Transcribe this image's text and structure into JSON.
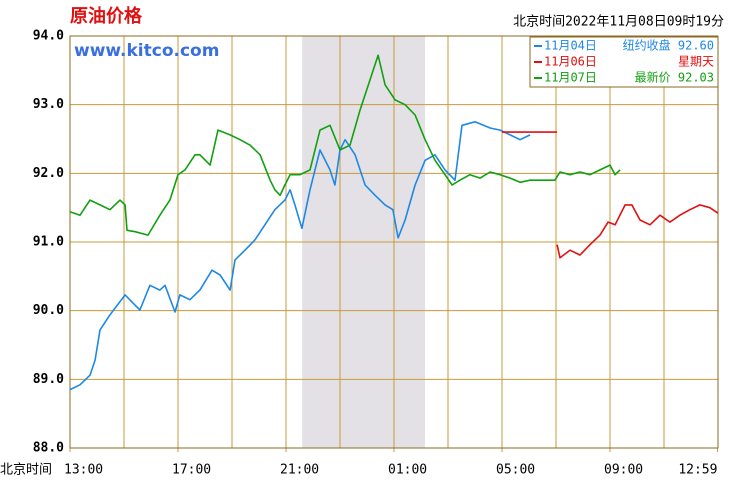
{
  "header": {
    "title": "原油价格",
    "site": "www.kitco.com",
    "timestamp": "北京时间2022年11月08日09时19分"
  },
  "chart_data": {
    "type": "line",
    "xlabel": "北京时间",
    "xlim": [
      0,
      24
    ],
    "ylim": [
      88,
      94
    ],
    "xticks": [
      {
        "value": 0,
        "label": "13:00"
      },
      {
        "value": 4,
        "label": "17:00"
      },
      {
        "value": 8,
        "label": "21:00"
      },
      {
        "value": 12,
        "label": "01:00"
      },
      {
        "value": 16,
        "label": "05:00"
      },
      {
        "value": 20,
        "label": "09:00"
      },
      {
        "value": 23.98,
        "label": "12:59"
      }
    ],
    "yticks": [
      {
        "value": 88,
        "label": "88.0"
      },
      {
        "value": 89,
        "label": "89.0"
      },
      {
        "value": 90,
        "label": "90.0"
      },
      {
        "value": 91,
        "label": "91.0"
      },
      {
        "value": 92,
        "label": "92.0"
      },
      {
        "value": 93,
        "label": "93.0"
      },
      {
        "value": 94,
        "label": "94.0"
      }
    ],
    "xgrid_every": 2,
    "grid": true,
    "grid_color": "#c89a3a",
    "shaded_range": [
      8.6,
      13.15
    ],
    "shade_color": "#e4e1e6",
    "legend": "upper right",
    "series": [
      {
        "name": "11月04日",
        "note": "纽约收盘 92.60",
        "color": "#1e88e5",
        "x": [
          0.0,
          0.37,
          0.74,
          0.93,
          1.11,
          1.48,
          2.04,
          2.41,
          2.59,
          2.96,
          3.33,
          3.52,
          3.89,
          4.07,
          4.44,
          4.81,
          5.26,
          5.56,
          5.93,
          6.11,
          6.48,
          6.85,
          7.22,
          7.59,
          7.96,
          8.15,
          8.33,
          8.59,
          8.89,
          9.26,
          9.63,
          9.81,
          10.0,
          10.19,
          10.56,
          10.93,
          11.3,
          11.67,
          11.96,
          12.15,
          12.41,
          12.78,
          13.15,
          13.52,
          13.89,
          14.26,
          14.52,
          15.0,
          15.56,
          15.93,
          16.3,
          16.67,
          17.04
        ],
        "values": [
          88.85,
          88.92,
          89.06,
          89.28,
          89.72,
          89.94,
          90.23,
          90.08,
          90.01,
          90.37,
          90.3,
          90.37,
          89.98,
          90.23,
          90.16,
          90.3,
          90.59,
          90.52,
          90.3,
          90.74,
          90.88,
          91.03,
          91.25,
          91.47,
          91.61,
          91.76,
          91.54,
          91.2,
          91.76,
          92.34,
          92.05,
          91.83,
          92.34,
          92.49,
          92.27,
          91.83,
          91.68,
          91.54,
          91.47,
          91.06,
          91.32,
          91.83,
          92.19,
          92.27,
          92.05,
          91.9,
          92.7,
          92.75,
          92.66,
          92.63,
          92.56,
          92.49,
          92.56
        ]
      },
      {
        "name": "11月06日",
        "note": "星期天",
        "color": "#e01010",
        "x": [
          16.0,
          18.04,
          null,
          18.04,
          18.15,
          18.52,
          18.89,
          19.26,
          19.63,
          19.93,
          20.19,
          20.56,
          20.81,
          21.11,
          21.48,
          21.85,
          22.22,
          22.59,
          22.96,
          23.33,
          23.7,
          24.0
        ],
        "values": [
          92.6,
          92.6,
          null,
          90.96,
          90.77,
          90.88,
          90.81,
          90.96,
          91.1,
          91.29,
          91.25,
          91.54,
          91.54,
          91.32,
          91.25,
          91.39,
          91.29,
          91.39,
          91.47,
          91.54,
          91.5,
          91.42
        ]
      },
      {
        "name": "11月07日",
        "note": "最新价 92.03",
        "color": "#10a010",
        "x": [
          0.0,
          0.37,
          0.74,
          1.11,
          1.48,
          1.85,
          2.04,
          2.11,
          2.41,
          2.89,
          3.33,
          3.7,
          4.0,
          4.26,
          4.63,
          4.81,
          5.19,
          5.48,
          5.93,
          6.3,
          6.67,
          7.04,
          7.41,
          7.59,
          7.78,
          7.96,
          8.15,
          8.52,
          8.89,
          9.26,
          9.63,
          10.0,
          10.37,
          10.74,
          11.11,
          11.41,
          11.67,
          12.04,
          12.41,
          12.78,
          13.15,
          13.52,
          13.89,
          14.15,
          14.44,
          14.81,
          15.19,
          15.56,
          15.93,
          16.3,
          16.67,
          17.04,
          17.96,
          18.15,
          18.52,
          18.89,
          19.26,
          19.63,
          20.0,
          20.19,
          20.37
        ],
        "values": [
          91.44,
          91.39,
          91.61,
          91.54,
          91.47,
          91.61,
          91.54,
          91.17,
          91.15,
          91.1,
          91.39,
          91.61,
          91.98,
          92.05,
          92.27,
          92.27,
          92.12,
          92.63,
          92.56,
          92.49,
          92.41,
          92.27,
          91.9,
          91.76,
          91.68,
          91.83,
          91.98,
          91.98,
          92.05,
          92.63,
          92.7,
          92.34,
          92.41,
          92.92,
          93.36,
          93.72,
          93.29,
          93.07,
          93.0,
          92.85,
          92.49,
          92.19,
          91.98,
          91.83,
          91.9,
          91.98,
          91.93,
          92.02,
          91.98,
          91.93,
          91.87,
          91.9,
          91.9,
          92.02,
          91.98,
          92.02,
          91.98,
          92.05,
          92.12,
          91.98,
          92.05
        ]
      }
    ]
  }
}
